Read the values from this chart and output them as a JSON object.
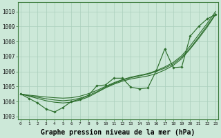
{
  "background_color": "#cce8d8",
  "grid_color": "#aacfbc",
  "line_color": "#2d6e2d",
  "xlabel": "Graphe pression niveau de la mer (hPa)",
  "xlabel_fontsize": 7.0,
  "ylim": [
    1002.8,
    1010.6
  ],
  "xlim": [
    -0.3,
    23.3
  ],
  "yticks": [
    1003,
    1004,
    1005,
    1006,
    1007,
    1008,
    1009,
    1010
  ],
  "xticks": [
    0,
    1,
    2,
    3,
    4,
    5,
    6,
    7,
    8,
    9,
    10,
    11,
    12,
    13,
    14,
    15,
    16,
    17,
    18,
    19,
    20,
    21,
    22,
    23
  ],
  "line_main": [
    1004.5,
    1004.2,
    1003.9,
    1003.5,
    1003.3,
    1003.6,
    1004.0,
    1004.15,
    1004.4,
    1005.05,
    1005.1,
    1005.55,
    1005.55,
    1004.95,
    1004.85,
    1004.9,
    1006.05,
    1007.5,
    1006.25,
    1006.3,
    1008.35,
    1009.0,
    1009.5,
    1009.8
  ],
  "line_smooth1": [
    1004.5,
    1004.35,
    1004.2,
    1004.05,
    1003.95,
    1003.9,
    1003.95,
    1004.1,
    1004.3,
    1004.6,
    1004.9,
    1005.15,
    1005.35,
    1005.5,
    1005.6,
    1005.7,
    1005.85,
    1006.1,
    1006.4,
    1006.85,
    1007.5,
    1008.2,
    1008.95,
    1009.8
  ],
  "line_smooth2": [
    1004.5,
    1004.38,
    1004.28,
    1004.18,
    1004.1,
    1004.05,
    1004.1,
    1004.22,
    1004.4,
    1004.65,
    1004.95,
    1005.2,
    1005.42,
    1005.58,
    1005.7,
    1005.82,
    1006.0,
    1006.22,
    1006.5,
    1006.95,
    1007.55,
    1008.28,
    1009.05,
    1009.85
  ],
  "line_smooth3": [
    1004.5,
    1004.42,
    1004.36,
    1004.3,
    1004.25,
    1004.22,
    1004.25,
    1004.35,
    1004.52,
    1004.74,
    1005.0,
    1005.25,
    1005.46,
    1005.62,
    1005.74,
    1005.86,
    1006.05,
    1006.3,
    1006.6,
    1007.05,
    1007.7,
    1008.45,
    1009.2,
    1010.0
  ]
}
